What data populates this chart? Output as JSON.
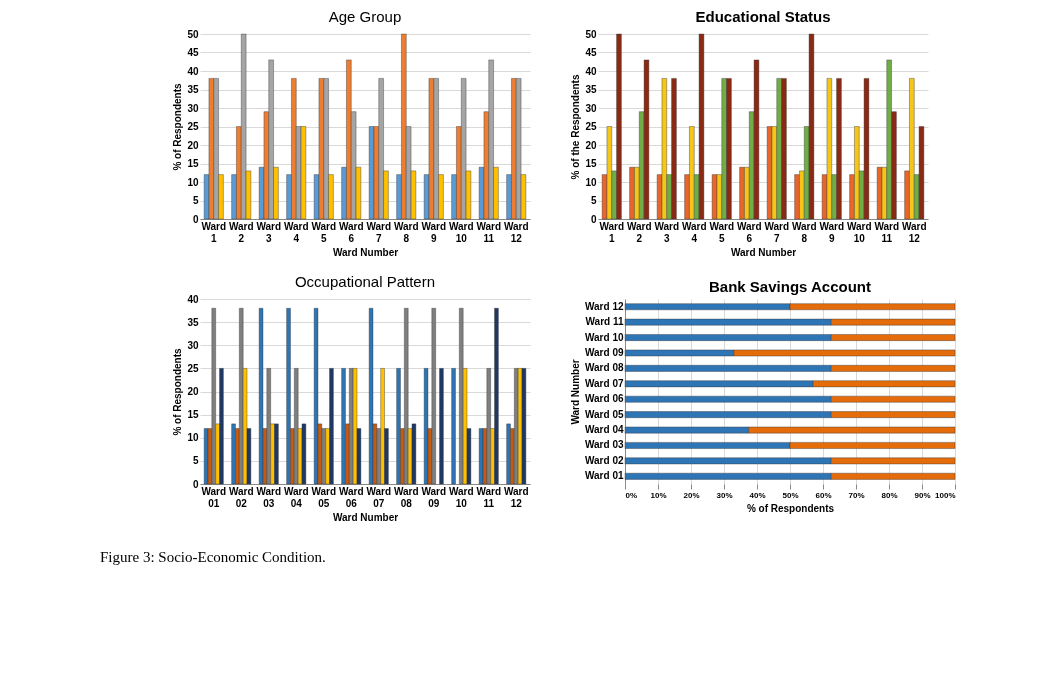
{
  "chart_data": [
    {
      "type": "bar",
      "title": "Age Group",
      "xlabel": "Ward Number",
      "ylabel": "% of Respondents",
      "categories": [
        "Ward 1",
        "Ward 2",
        "Ward 3",
        "Ward 4",
        "Ward 5",
        "Ward 6",
        "Ward 7",
        "Ward 8",
        "Ward 9",
        "Ward 10",
        "Ward 11",
        "Ward 12"
      ],
      "series": [
        {
          "color": "#5b9bd5",
          "values": [
            12,
            12,
            14,
            12,
            12,
            14,
            25,
            12,
            12,
            12,
            14,
            12
          ]
        },
        {
          "color": "#ed7d31",
          "values": [
            38,
            25,
            29,
            38,
            38,
            43,
            25,
            50,
            38,
            25,
            29,
            38
          ]
        },
        {
          "color": "#a5a5a5",
          "values": [
            38,
            50,
            43,
            25,
            38,
            29,
            38,
            25,
            38,
            38,
            43,
            38
          ]
        },
        {
          "color": "#ffc000",
          "values": [
            12,
            13,
            14,
            25,
            12,
            14,
            13,
            13,
            12,
            13,
            14,
            12
          ]
        }
      ],
      "ylim": [
        0,
        50
      ],
      "yticks": [
        0,
        5,
        10,
        15,
        20,
        25,
        30,
        35,
        40,
        45,
        50
      ],
      "grid": "y"
    },
    {
      "type": "bar",
      "title": "Educational Status",
      "xlabel": "Ward Number",
      "ylabel": "% of the Respondents",
      "categories": [
        "Ward 1",
        "Ward 2",
        "Ward 3",
        "Ward 4",
        "Ward 5",
        "Ward 6",
        "Ward 7",
        "Ward 8",
        "Ward 9",
        "Ward 10",
        "Ward 11",
        "Ward 12"
      ],
      "series": [
        {
          "color": "#e8662a",
          "values": [
            12,
            14,
            12,
            12,
            12,
            14,
            25,
            12,
            12,
            12,
            14,
            13
          ]
        },
        {
          "color": "#f5c518",
          "values": [
            25,
            14,
            38,
            25,
            12,
            14,
            25,
            13,
            38,
            25,
            14,
            38
          ]
        },
        {
          "color": "#70ad47",
          "values": [
            13,
            29,
            12,
            12,
            38,
            29,
            38,
            25,
            12,
            13,
            43,
            12
          ]
        },
        {
          "color": "#8b2a14",
          "values": [
            50,
            43,
            38,
            50,
            38,
            43,
            38,
            50,
            38,
            38,
            29,
            25
          ]
        }
      ],
      "ylim": [
        0,
        50
      ],
      "yticks": [
        0,
        5,
        10,
        15,
        20,
        25,
        30,
        35,
        40,
        45,
        50
      ],
      "grid": "y"
    },
    {
      "type": "bar",
      "title": "Occupational Pattern",
      "xlabel": "Ward Number",
      "ylabel": "% of Respondents",
      "categories": [
        "Ward 01",
        "Ward 02",
        "Ward 03",
        "Ward 04",
        "Ward 05",
        "Ward 06",
        "Ward 07",
        "Ward 08",
        "Ward 09",
        "Ward 10",
        "Ward 11",
        "Ward 12"
      ],
      "series": [
        {
          "color": "#2e75b6",
          "values": [
            12,
            13,
            38,
            38,
            38,
            25,
            38,
            25,
            25,
            25,
            12,
            13
          ]
        },
        {
          "color": "#c55a11",
          "values": [
            12,
            12,
            12,
            12,
            13,
            13,
            13,
            12,
            12,
            null,
            12,
            12
          ]
        },
        {
          "color": "#7f7f7f",
          "values": [
            38,
            38,
            25,
            25,
            12,
            25,
            12,
            38,
            38,
            38,
            25,
            25
          ]
        },
        {
          "color": "#ffc000",
          "values": [
            13,
            25,
            13,
            12,
            12,
            25,
            25,
            12,
            null,
            25,
            12,
            25
          ]
        },
        {
          "color": "#1f3864",
          "values": [
            25,
            12,
            13,
            13,
            25,
            12,
            12,
            13,
            25,
            12,
            38,
            25
          ]
        }
      ],
      "ylim": [
        0,
        40
      ],
      "yticks": [
        0,
        5,
        10,
        15,
        20,
        25,
        30,
        35,
        40
      ],
      "grid": "y"
    },
    {
      "type": "bar",
      "title": "Bank Savings Account",
      "xlabel": "% of  Respondents",
      "ylabel": "Ward Number",
      "orientation": "horizontal",
      "stacked": true,
      "categories": [
        "Ward 12",
        "Ward 11",
        "Ward 10",
        "Ward 09",
        "Ward 08",
        "Ward 07",
        "Ward 06",
        "Ward 05",
        "Ward 04",
        "Ward 03",
        "Ward 02",
        "Ward 01"
      ],
      "series": [
        {
          "color": "#2e75b6",
          "values": [
            50,
            62.5,
            62.5,
            33,
            62.5,
            57,
            62.5,
            62.5,
            37.5,
            50,
            62.5,
            62.5
          ]
        },
        {
          "color": "#e46c0a",
          "values": [
            50,
            37.5,
            37.5,
            67,
            37.5,
            43,
            37.5,
            37.5,
            62.5,
            50,
            37.5,
            37.5
          ]
        }
      ],
      "xlim": [
        0,
        100
      ],
      "xticks": [
        {
          "value": 0,
          "label": "0%"
        },
        {
          "value": 10,
          "label": "10%"
        },
        {
          "value": 20,
          "label": "20%"
        },
        {
          "value": 30,
          "label": "30%"
        },
        {
          "value": 40,
          "label": "40%"
        },
        {
          "value": 50,
          "label": "50%"
        },
        {
          "value": 60,
          "label": "60%"
        },
        {
          "value": 70,
          "label": "70%"
        },
        {
          "value": 80,
          "label": "80%"
        },
        {
          "value": 90,
          "label": "90%"
        },
        {
          "value": 100,
          "label": "100%"
        }
      ],
      "grid": "x",
      "annotations": [
        "Figure 3: Socio-Economic Condition."
      ]
    }
  ]
}
